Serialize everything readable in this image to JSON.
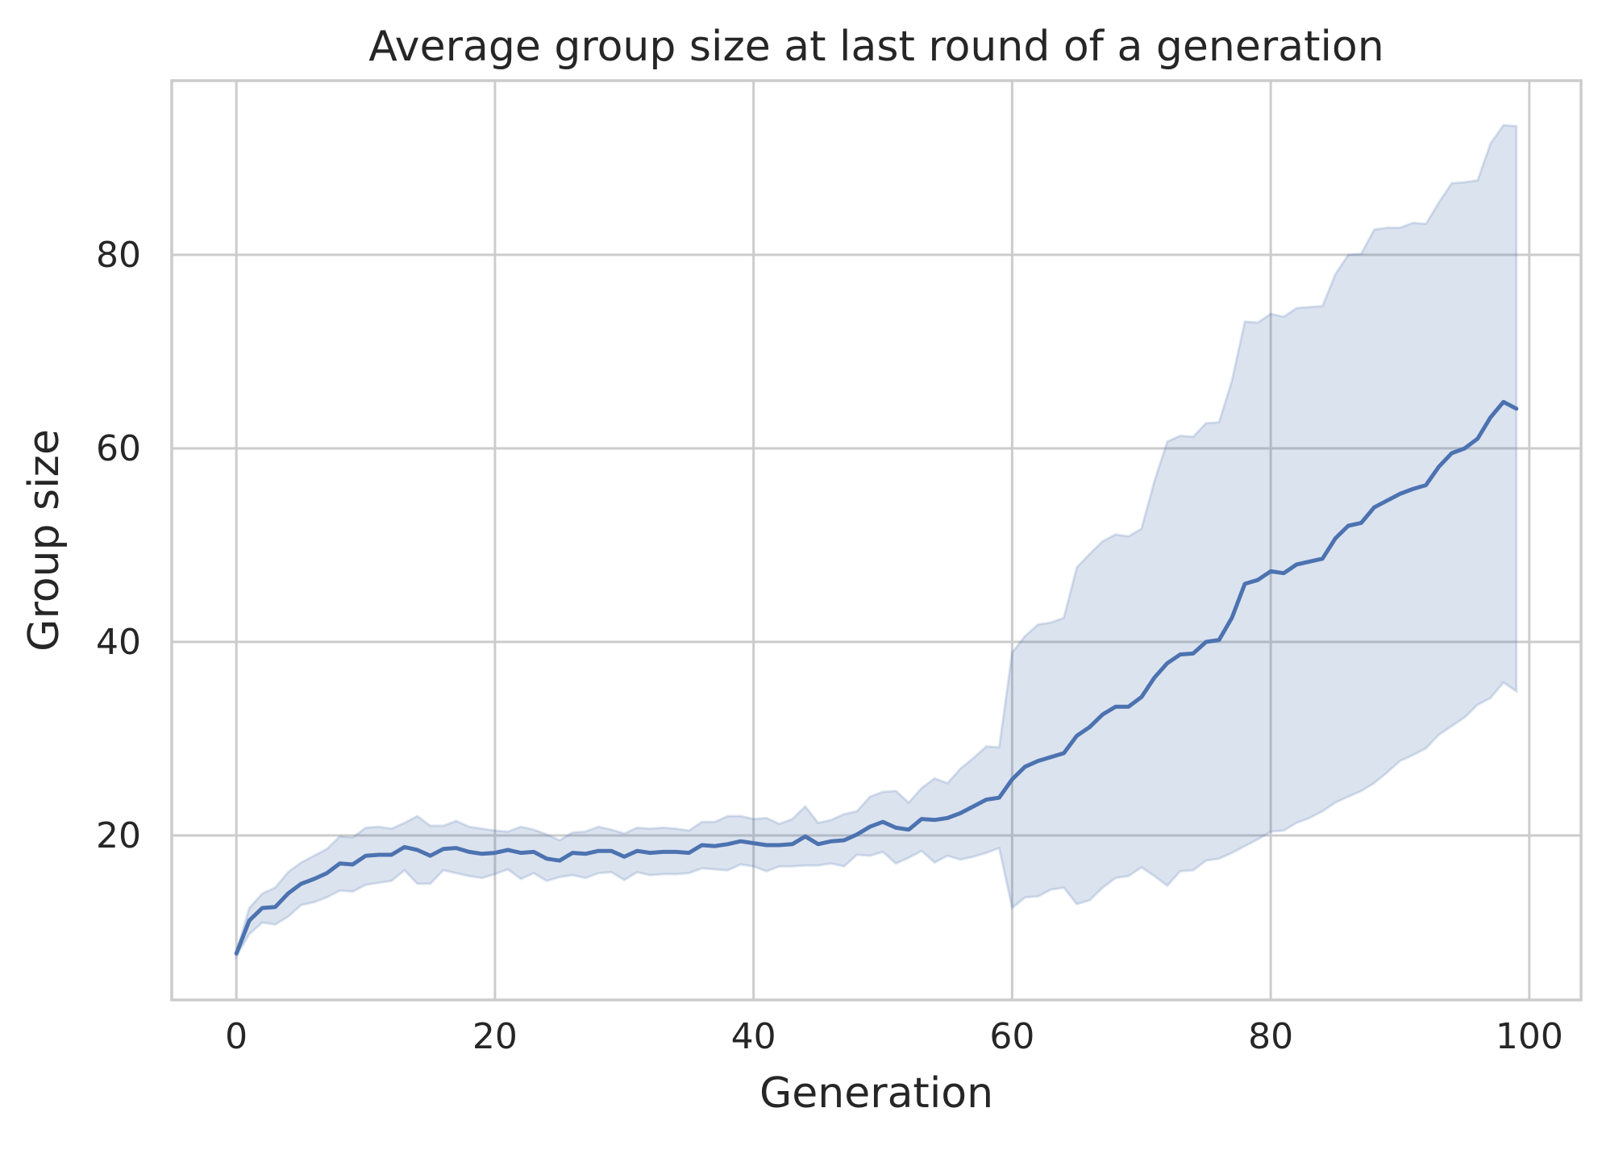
{
  "chart_data": {
    "type": "line",
    "title": "Average group size at last round of a generation",
    "xlabel": "Generation",
    "ylabel": "Group size",
    "xlim": [
      -5,
      104
    ],
    "ylim": [
      3,
      98
    ],
    "xticks": [
      0,
      20,
      40,
      60,
      80,
      100
    ],
    "yticks": [
      20,
      40,
      60,
      80
    ],
    "grid": true,
    "colors": {
      "line": "#4c72b0",
      "band": "#4c72b0"
    },
    "series": [
      {
        "x": [
          0,
          1,
          2,
          3,
          4,
          5,
          6,
          7,
          8,
          9,
          10,
          11,
          12,
          13,
          14,
          15,
          16,
          17,
          18,
          19,
          20,
          21,
          22,
          23,
          24,
          25,
          26,
          27,
          28,
          29,
          30,
          31,
          32,
          33,
          34,
          35,
          36,
          37,
          38,
          39,
          40,
          41,
          42,
          43,
          44,
          45,
          46,
          47,
          48,
          49,
          50,
          51,
          52,
          53,
          54,
          55,
          56,
          57,
          58,
          59,
          60,
          61,
          62,
          63,
          64,
          65,
          66,
          67,
          68,
          69,
          70,
          71,
          72,
          73,
          74,
          75,
          76,
          77,
          78,
          79,
          80,
          81,
          82,
          83,
          84,
          85,
          86,
          87,
          88,
          89,
          90,
          91,
          92,
          93,
          94,
          95,
          96,
          97,
          98,
          99
        ],
        "y": [
          7.8,
          11.2,
          12.5,
          12.6,
          14,
          15,
          15.5,
          16.1,
          17.1,
          17,
          17.9,
          18,
          18,
          18.8,
          18.5,
          17.9,
          18.6,
          18.7,
          18.3,
          18.1,
          18.2,
          18.5,
          18.2,
          18.3,
          17.6,
          17.4,
          18.2,
          18.1,
          18.4,
          18.4,
          17.8,
          18.4,
          18.2,
          18.3,
          18.3,
          18.2,
          19,
          18.9,
          19.1,
          19.4,
          19.2,
          19,
          19,
          19.1,
          19.9,
          19.1,
          19.4,
          19.5,
          20.1,
          20.9,
          21.4,
          20.8,
          20.6,
          21.7,
          21.6,
          21.8,
          22.3,
          23,
          23.7,
          23.9,
          25.8,
          27.1,
          27.7,
          28.1,
          28.5,
          30.3,
          31.2,
          32.5,
          33.3,
          33.3,
          34.3,
          36.3,
          37.8,
          38.7,
          38.8,
          40,
          40.2,
          42.5,
          46,
          46.4,
          47.3,
          47.1,
          48,
          48.3,
          48.6,
          50.7,
          52,
          52.3,
          53.9,
          54.6,
          55.3,
          55.8,
          56.2,
          58.1,
          59.5,
          60,
          61,
          63.2,
          64.8,
          64.1
        ],
        "y_upper": [
          8,
          12.5,
          14,
          14.6,
          16.2,
          17.2,
          17.9,
          18.6,
          19.9,
          19.8,
          20.8,
          20.9,
          20.7,
          21.3,
          22,
          21,
          21,
          21.5,
          20.9,
          20.7,
          20.5,
          20.4,
          20.9,
          20.6,
          20.1,
          19.5,
          20.3,
          20.4,
          20.9,
          20.6,
          20.2,
          20.8,
          20.7,
          20.8,
          20.7,
          20.5,
          21.4,
          21.4,
          22,
          22,
          21.7,
          21.8,
          21.2,
          21.7,
          23,
          21.3,
          21.6,
          22.2,
          22.5,
          24,
          24.5,
          24.6,
          23.4,
          24.9,
          25.9,
          25.4,
          26.9,
          28,
          29.2,
          29.1,
          38.9,
          40.6,
          41.8,
          42,
          42.5,
          47.7,
          49.1,
          50.4,
          51.1,
          50.9,
          51.7,
          56.6,
          60.7,
          61.3,
          61.2,
          62.6,
          62.7,
          67,
          73.1,
          73,
          73.9,
          73.6,
          74.5,
          74.6,
          74.7,
          78,
          80,
          80.1,
          82.6,
          82.8,
          82.8,
          83.3,
          83.2,
          85.4,
          87.4,
          87.5,
          87.7,
          91.5,
          93.4,
          93.3
        ],
        "y_lower": [
          7.5,
          9.8,
          11,
          10.8,
          11.6,
          12.8,
          13.1,
          13.6,
          14.3,
          14.2,
          14.9,
          15.1,
          15.3,
          16.4,
          15,
          15,
          16.4,
          16.1,
          15.8,
          15.6,
          16,
          16.5,
          15.5,
          16.1,
          15.3,
          15.7,
          15.9,
          15.6,
          16.1,
          16.2,
          15.4,
          16.2,
          15.9,
          16,
          16,
          16.1,
          16.6,
          16.5,
          16.4,
          17,
          16.8,
          16.3,
          16.8,
          16.8,
          16.9,
          16.9,
          17.1,
          16.8,
          18,
          17.9,
          18.3,
          17.1,
          17.7,
          18.4,
          17.2,
          17.9,
          17.5,
          17.8,
          18.2,
          18.7,
          12.5,
          13.6,
          13.7,
          14.4,
          14.6,
          12.9,
          13.3,
          14.6,
          15.6,
          15.8,
          16.7,
          15.8,
          14.8,
          16.3,
          16.4,
          17.4,
          17.6,
          18.2,
          18.9,
          19.6,
          20.4,
          20.5,
          21.3,
          21.8,
          22.5,
          23.4,
          24,
          24.6,
          25.4,
          26.5,
          27.7,
          28.3,
          29,
          30.4,
          31.3,
          32.2,
          33.5,
          34.2,
          35.8,
          34.9
        ]
      }
    ]
  }
}
